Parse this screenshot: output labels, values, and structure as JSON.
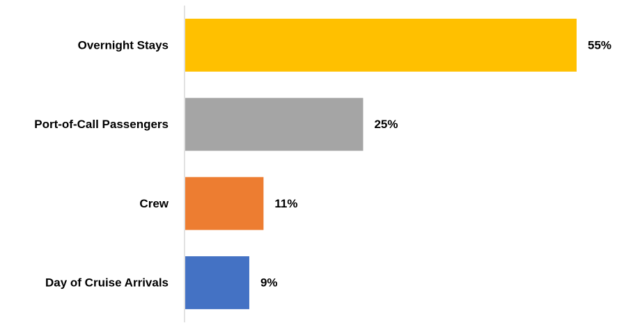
{
  "chart_data": {
    "type": "bar",
    "orientation": "horizontal",
    "categories": [
      "Overnight Stays",
      "Port-of-Call Passengers",
      "Crew",
      "Day of Cruise Arrivals"
    ],
    "values": [
      55,
      25,
      11,
      9
    ],
    "value_labels": [
      "55%",
      "25%",
      "11%",
      "9%"
    ],
    "unit": "%",
    "colors": [
      "#FFC000",
      "#A5A5A5",
      "#ED7D31",
      "#4472C4"
    ],
    "axis_color": "#D9D9D9",
    "xlim": [
      0,
      55
    ],
    "grid": false,
    "legend": "none"
  }
}
